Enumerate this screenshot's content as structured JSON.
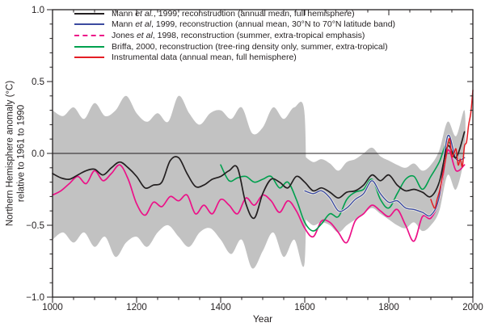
{
  "figure": {
    "xlabel": "Year",
    "ylabel_line1": "Northern Hemisphere anomaly (°C)",
    "ylabel_line2": "relative to 1961 to 1990",
    "background": "#ffffff"
  },
  "colors": {
    "axis": "#231f20",
    "mann_nh": "#231f20",
    "mann_band_30_70": "#3b4aa0",
    "jones": "#ec1188",
    "briffa": "#00a04e",
    "instrumental": "#e41e25",
    "uncertainty_fill": "#c2c2c2"
  },
  "axes": {
    "x": {
      "min": 1000,
      "max": 2000,
      "minor_step": 50,
      "ticks": [
        {
          "v": 1000,
          "label": "1000"
        },
        {
          "v": 1200,
          "label": "1200"
        },
        {
          "v": 1400,
          "label": "1400"
        },
        {
          "v": 1600,
          "label": "1600"
        },
        {
          "v": 1800,
          "label": "1800"
        },
        {
          "v": 2000,
          "label": "2000"
        }
      ]
    },
    "y": {
      "min": -1.0,
      "max": 1.0,
      "minor_step": 0.1,
      "ticks": [
        {
          "v": 1.0,
          "label": "1.0"
        },
        {
          "v": 0.5,
          "label": "0.5"
        },
        {
          "v": 0.0,
          "label": "0.0"
        },
        {
          "v": -0.5,
          "label": "−0.5"
        },
        {
          "v": -1.0,
          "label": "−1.0"
        }
      ]
    }
  },
  "legend": {
    "position": "top-left",
    "items": [
      {
        "id": "mann-1999-nh",
        "color": "#231f20",
        "dash": false,
        "segments": [
          {
            "text": "Mann ",
            "italic": false
          },
          {
            "text": "et al.",
            "italic": true
          },
          {
            "text": ", 1999, reconstruction (annual mean, full hemisphere)",
            "italic": false
          }
        ]
      },
      {
        "id": "mann-1999-30-70",
        "color": "#3b4aa0",
        "dash": false,
        "segments": [
          {
            "text": "Mann ",
            "italic": false
          },
          {
            "text": "et al",
            "italic": true
          },
          {
            "text": ", 1999, reconstruction (annual mean, 30°N to 70°N latitude band)",
            "italic": false
          }
        ]
      },
      {
        "id": "jones-1998",
        "color": "#ec1188",
        "dash": true,
        "segments": [
          {
            "text": "Jones ",
            "italic": false
          },
          {
            "text": "et al",
            "italic": true
          },
          {
            "text": ", 1998, reconstruction (summer, extra-tropical emphasis)",
            "italic": false
          }
        ]
      },
      {
        "id": "briffa-2000",
        "color": "#00a04e",
        "dash": false,
        "segments": [
          {
            "text": "Briffa, 2000, reconstruction (tree-ring density only, summer, extra-tropical)",
            "italic": false
          }
        ]
      },
      {
        "id": "instrumental",
        "color": "#e41e25",
        "dash": false,
        "segments": [
          {
            "text": "Instrumental data (annual mean, full hemisphere)",
            "italic": false
          }
        ]
      }
    ]
  },
  "chart_data": {
    "type": "line",
    "title": "",
    "xlabel": "Year",
    "ylabel": "Northern Hemisphere anomaly (°C) relative to 1961 to 1990",
    "xlim": [
      1000,
      2000
    ],
    "ylim": [
      -1.0,
      1.0
    ],
    "grid": false,
    "zero_line": 0.0,
    "uncertainty_band": {
      "name": "Mann et al., 1999 uncertainty range (gray shading)",
      "fill": "#c2c2c2",
      "segments": [
        {
          "x": [
            1000,
            1025,
            1050,
            1075,
            1100,
            1125,
            1150,
            1175,
            1200,
            1225,
            1250,
            1275,
            1300,
            1325,
            1350,
            1375,
            1400,
            1425,
            1450,
            1475,
            1500,
            1525,
            1550,
            1575,
            1600
          ],
          "top": [
            0.3,
            0.26,
            0.32,
            0.24,
            0.35,
            0.26,
            0.3,
            0.4,
            0.28,
            0.22,
            0.28,
            0.22,
            0.4,
            0.28,
            0.2,
            0.28,
            0.3,
            0.24,
            0.32,
            0.14,
            0.18,
            0.32,
            0.24,
            0.32,
            0.26
          ],
          "bottom": [
            -0.6,
            -0.55,
            -0.62,
            -0.55,
            -0.65,
            -0.58,
            -0.72,
            -0.62,
            -0.58,
            -0.65,
            -0.55,
            -0.5,
            -0.58,
            -0.65,
            -0.55,
            -0.52,
            -0.6,
            -0.7,
            -0.6,
            -0.8,
            -0.68,
            -0.55,
            -0.72,
            -0.6,
            -0.75
          ]
        },
        {
          "x": [
            1600,
            1620,
            1640,
            1660,
            1680,
            1700,
            1720,
            1740,
            1760,
            1780,
            1800,
            1820,
            1840,
            1860,
            1880,
            1900,
            1920,
            1940,
            1960,
            1980
          ],
          "top": [
            -0.02,
            -0.06,
            -0.04,
            -0.07,
            -0.12,
            -0.06,
            -0.04,
            0.0,
            0.04,
            -0.02,
            -0.05,
            -0.08,
            -0.1,
            -0.07,
            -0.12,
            -0.08,
            0.02,
            0.22,
            0.12,
            0.3
          ],
          "bottom": [
            -0.45,
            -0.5,
            -0.48,
            -0.5,
            -0.55,
            -0.5,
            -0.46,
            -0.42,
            -0.38,
            -0.42,
            -0.46,
            -0.5,
            -0.52,
            -0.48,
            -0.54,
            -0.5,
            -0.4,
            -0.15,
            -0.25,
            0.0
          ]
        }
      ]
    },
    "series": [
      {
        "id": "jones-1998",
        "name": "Jones et al, 1998, reconstruction (summer, extra-tropical emphasis)",
        "color": "#ec1188",
        "width": 1.7,
        "x": [
          1000,
          1020,
          1040,
          1060,
          1080,
          1100,
          1120,
          1140,
          1160,
          1180,
          1200,
          1220,
          1240,
          1260,
          1280,
          1300,
          1320,
          1340,
          1360,
          1380,
          1400,
          1420,
          1440,
          1460,
          1480,
          1500,
          1520,
          1540,
          1560,
          1580,
          1600,
          1620,
          1640,
          1660,
          1680,
          1700,
          1720,
          1740,
          1760,
          1780,
          1800,
          1820,
          1840,
          1860,
          1880,
          1900,
          1920,
          1940,
          1960,
          1980
        ],
        "y": [
          -0.29,
          -0.26,
          -0.21,
          -0.16,
          -0.21,
          -0.12,
          -0.19,
          -0.14,
          -0.08,
          -0.18,
          -0.35,
          -0.43,
          -0.34,
          -0.37,
          -0.3,
          -0.33,
          -0.29,
          -0.42,
          -0.36,
          -0.42,
          -0.32,
          -0.36,
          -0.42,
          -0.31,
          -0.36,
          -0.29,
          -0.33,
          -0.41,
          -0.33,
          -0.4,
          -0.52,
          -0.58,
          -0.47,
          -0.48,
          -0.55,
          -0.62,
          -0.47,
          -0.42,
          -0.36,
          -0.4,
          -0.44,
          -0.39,
          -0.5,
          -0.61,
          -0.44,
          -0.45,
          -0.32,
          0.02,
          -0.12,
          -0.08
        ]
      },
      {
        "id": "briffa-2000",
        "name": "Briffa, 2000, reconstruction (tree-ring density only, summer, extra-tropical)",
        "color": "#00a04e",
        "width": 1.6,
        "x": [
          1400,
          1420,
          1440,
          1460,
          1480,
          1500,
          1520,
          1540,
          1560,
          1580,
          1600,
          1620,
          1640,
          1660,
          1680,
          1700,
          1720,
          1740,
          1760,
          1780,
          1800,
          1820,
          1840,
          1860,
          1880,
          1900,
          1920,
          1940,
          1960
        ],
        "y": [
          -0.08,
          -0.19,
          -0.17,
          -0.16,
          -0.2,
          -0.18,
          -0.16,
          -0.24,
          -0.2,
          -0.32,
          -0.48,
          -0.54,
          -0.49,
          -0.42,
          -0.44,
          -0.32,
          -0.27,
          -0.25,
          -0.18,
          -0.32,
          -0.38,
          -0.28,
          -0.18,
          -0.16,
          -0.25,
          -0.16,
          -0.06,
          0.08,
          -0.02
        ]
      },
      {
        "id": "mann-1999-30-70",
        "name": "Mann et al, 1999, reconstruction (annual mean, 30°N to 70°N latitude band)",
        "color": "#3b4aa0",
        "width": 1.4,
        "casing": true,
        "x": [
          1600,
          1620,
          1640,
          1660,
          1680,
          1700,
          1720,
          1740,
          1760,
          1780,
          1800,
          1820,
          1840,
          1860,
          1880,
          1900,
          1920,
          1940,
          1960,
          1980
        ],
        "y": [
          -0.26,
          -0.28,
          -0.26,
          -0.31,
          -0.4,
          -0.38,
          -0.32,
          -0.28,
          -0.19,
          -0.28,
          -0.34,
          -0.33,
          -0.38,
          -0.39,
          -0.41,
          -0.43,
          -0.3,
          0.12,
          -0.04,
          -0.03
        ]
      },
      {
        "id": "mann-1999-nh",
        "name": "Mann et al., 1999, reconstruction (annual mean, full hemisphere)",
        "color": "#231f20",
        "width": 1.7,
        "x": [
          1000,
          1020,
          1040,
          1060,
          1080,
          1100,
          1120,
          1140,
          1160,
          1180,
          1200,
          1220,
          1240,
          1260,
          1280,
          1300,
          1320,
          1340,
          1360,
          1380,
          1400,
          1420,
          1440,
          1460,
          1480,
          1500,
          1520,
          1540,
          1560,
          1580,
          1600,
          1620,
          1640,
          1660,
          1680,
          1700,
          1720,
          1740,
          1760,
          1780,
          1800,
          1820,
          1840,
          1860,
          1880,
          1900,
          1920,
          1940,
          1960,
          1980
        ],
        "y": [
          -0.14,
          -0.17,
          -0.18,
          -0.15,
          -0.12,
          -0.11,
          -0.15,
          -0.1,
          -0.06,
          -0.1,
          -0.16,
          -0.24,
          -0.22,
          -0.2,
          -0.05,
          -0.03,
          -0.14,
          -0.23,
          -0.22,
          -0.18,
          -0.16,
          -0.12,
          -0.1,
          -0.35,
          -0.45,
          -0.28,
          -0.18,
          -0.2,
          -0.24,
          -0.16,
          -0.2,
          -0.26,
          -0.24,
          -0.27,
          -0.31,
          -0.27,
          -0.26,
          -0.22,
          -0.15,
          -0.19,
          -0.15,
          -0.22,
          -0.26,
          -0.25,
          -0.27,
          -0.3,
          -0.2,
          0.05,
          -0.03,
          0.15
        ]
      },
      {
        "id": "instrumental",
        "name": "Instrumental data (annual mean, full hemisphere)",
        "color": "#e41e25",
        "width": 1.5,
        "x": [
          1900,
          1905,
          1910,
          1915,
          1920,
          1925,
          1930,
          1935,
          1940,
          1945,
          1950,
          1955,
          1960,
          1965,
          1970,
          1975,
          1980,
          1985,
          1990,
          1995,
          2000
        ],
        "y": [
          -0.32,
          -0.36,
          -0.38,
          -0.32,
          -0.27,
          -0.2,
          -0.12,
          -0.04,
          0.06,
          0.1,
          -0.02,
          0.0,
          0.03,
          -0.08,
          -0.04,
          -0.09,
          0.05,
          0.08,
          0.2,
          0.28,
          0.44
        ]
      }
    ]
  }
}
